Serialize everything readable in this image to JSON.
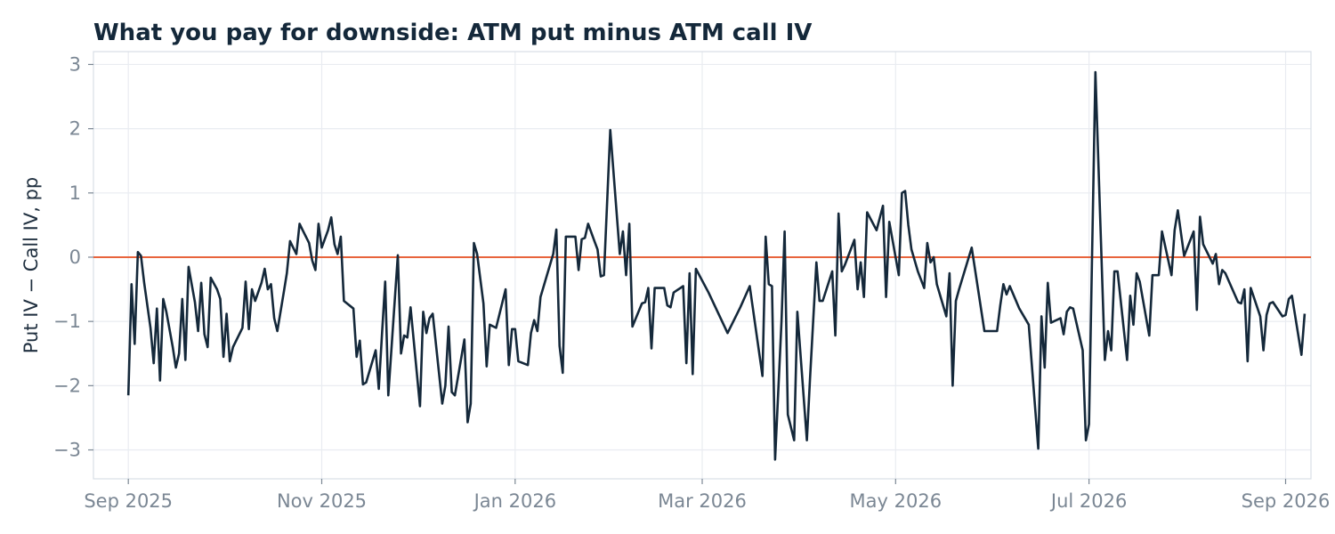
{
  "chart_data": {
    "type": "line",
    "title": "What you pay for downside: ATM put minus ATM call IV",
    "xlabel": "",
    "ylabel": "Put IV − Call IV, pp",
    "xlim": [
      "2025-08-21",
      "2026-09-09"
    ],
    "ylim": [
      -3.45,
      3.2
    ],
    "yticks": [
      {
        "value": 3,
        "label": "3"
      },
      {
        "value": 2,
        "label": "2"
      },
      {
        "value": 1,
        "label": "1"
      },
      {
        "value": 0,
        "label": "0"
      },
      {
        "value": -1,
        "label": "−1"
      },
      {
        "value": -2,
        "label": "−2"
      },
      {
        "value": -3,
        "label": "−3"
      }
    ],
    "xticks": [
      {
        "date": "2025-09-01",
        "label": "Sep 2025"
      },
      {
        "date": "2025-11-01",
        "label": "Nov 2025"
      },
      {
        "date": "2026-01-01",
        "label": "Jan 2026"
      },
      {
        "date": "2026-03-01",
        "label": "Mar 2026"
      },
      {
        "date": "2026-05-01",
        "label": "May 2026"
      },
      {
        "date": "2026-07-01",
        "label": "Jul 2026"
      },
      {
        "date": "2026-09-01",
        "label": "Sep 2026"
      }
    ],
    "grid": true,
    "reference_line": {
      "y": 0,
      "color": "#e8643c"
    },
    "series": [
      {
        "color": "#14283a",
        "points": [
          [
            "2025-09-01",
            -2.15
          ],
          [
            "2025-09-02",
            -0.42
          ],
          [
            "2025-09-03",
            -1.35
          ],
          [
            "2025-09-04",
            0.08
          ],
          [
            "2025-09-05",
            0.02
          ],
          [
            "2025-09-06",
            -0.4
          ],
          [
            "2025-09-08",
            -1.1
          ],
          [
            "2025-09-09",
            -1.65
          ],
          [
            "2025-09-10",
            -0.8
          ],
          [
            "2025-09-11",
            -1.92
          ],
          [
            "2025-09-12",
            -0.65
          ],
          [
            "2025-09-13",
            -0.85
          ],
          [
            "2025-09-15",
            -1.4
          ],
          [
            "2025-09-16",
            -1.72
          ],
          [
            "2025-09-17",
            -1.5
          ],
          [
            "2025-09-18",
            -0.65
          ],
          [
            "2025-09-19",
            -1.6
          ],
          [
            "2025-09-20",
            -0.15
          ],
          [
            "2025-09-22",
            -0.7
          ],
          [
            "2025-09-23",
            -1.15
          ],
          [
            "2025-09-24",
            -0.4
          ],
          [
            "2025-09-25",
            -1.2
          ],
          [
            "2025-09-26",
            -1.4
          ],
          [
            "2025-09-27",
            -0.32
          ],
          [
            "2025-09-29",
            -0.5
          ],
          [
            "2025-09-30",
            -0.65
          ],
          [
            "2025-10-01",
            -1.55
          ],
          [
            "2025-10-02",
            -0.88
          ],
          [
            "2025-10-03",
            -1.62
          ],
          [
            "2025-10-04",
            -1.4
          ],
          [
            "2025-10-07",
            -1.1
          ],
          [
            "2025-10-08",
            -0.38
          ],
          [
            "2025-10-09",
            -1.12
          ],
          [
            "2025-10-10",
            -0.5
          ],
          [
            "2025-10-11",
            -0.68
          ],
          [
            "2025-10-13",
            -0.4
          ],
          [
            "2025-10-14",
            -0.18
          ],
          [
            "2025-10-15",
            -0.5
          ],
          [
            "2025-10-16",
            -0.42
          ],
          [
            "2025-10-17",
            -0.95
          ],
          [
            "2025-10-18",
            -1.15
          ],
          [
            "2025-10-20",
            -0.55
          ],
          [
            "2025-10-21",
            -0.25
          ],
          [
            "2025-10-22",
            0.25
          ],
          [
            "2025-10-23",
            0.15
          ],
          [
            "2025-10-24",
            0.05
          ],
          [
            "2025-10-25",
            0.52
          ],
          [
            "2025-10-26",
            0.42
          ],
          [
            "2025-10-28",
            0.22
          ],
          [
            "2025-10-29",
            -0.05
          ],
          [
            "2025-10-30",
            -0.2
          ],
          [
            "2025-10-31",
            0.52
          ],
          [
            "2025-11-01",
            0.15
          ],
          [
            "2025-11-03",
            0.42
          ],
          [
            "2025-11-04",
            0.62
          ],
          [
            "2025-11-05",
            0.2
          ],
          [
            "2025-11-06",
            0.05
          ],
          [
            "2025-11-07",
            0.32
          ],
          [
            "2025-11-08",
            -0.68
          ],
          [
            "2025-11-11",
            -0.8
          ],
          [
            "2025-11-12",
            -1.55
          ],
          [
            "2025-11-13",
            -1.3
          ],
          [
            "2025-11-14",
            -1.98
          ],
          [
            "2025-11-15",
            -1.95
          ],
          [
            "2025-11-18",
            -1.45
          ],
          [
            "2025-11-19",
            -2.05
          ],
          [
            "2025-11-20",
            -1.2
          ],
          [
            "2025-11-21",
            -0.38
          ],
          [
            "2025-11-22",
            -2.15
          ],
          [
            "2025-11-24",
            -0.7
          ],
          [
            "2025-11-25",
            0.03
          ],
          [
            "2025-11-26",
            -1.5
          ],
          [
            "2025-11-27",
            -1.22
          ],
          [
            "2025-11-28",
            -1.25
          ],
          [
            "2025-11-29",
            -0.78
          ],
          [
            "2025-12-02",
            -2.32
          ],
          [
            "2025-12-03",
            -0.85
          ],
          [
            "2025-12-04",
            -1.18
          ],
          [
            "2025-12-05",
            -0.95
          ],
          [
            "2025-12-06",
            -0.88
          ],
          [
            "2025-12-09",
            -2.28
          ],
          [
            "2025-12-10",
            -2.0
          ],
          [
            "2025-12-11",
            -1.08
          ],
          [
            "2025-12-12",
            -2.1
          ],
          [
            "2025-12-13",
            -2.15
          ],
          [
            "2025-12-16",
            -1.28
          ],
          [
            "2025-12-17",
            -2.57
          ],
          [
            "2025-12-18",
            -2.28
          ],
          [
            "2025-12-19",
            0.22
          ],
          [
            "2025-12-20",
            0.05
          ],
          [
            "2025-12-22",
            -0.72
          ],
          [
            "2025-12-23",
            -1.7
          ],
          [
            "2025-12-24",
            -1.05
          ],
          [
            "2025-12-26",
            -1.1
          ],
          [
            "2025-12-29",
            -0.5
          ],
          [
            "2025-12-30",
            -1.68
          ],
          [
            "2025-12-31",
            -1.12
          ],
          [
            "2026-01-01",
            -1.12
          ],
          [
            "2026-01-02",
            -1.62
          ],
          [
            "2026-01-05",
            -1.68
          ],
          [
            "2026-01-06",
            -1.18
          ],
          [
            "2026-01-07",
            -0.98
          ],
          [
            "2026-01-08",
            -1.15
          ],
          [
            "2026-01-09",
            -0.62
          ],
          [
            "2026-01-13",
            0.05
          ],
          [
            "2026-01-14",
            0.43
          ],
          [
            "2026-01-15",
            -1.38
          ],
          [
            "2026-01-16",
            -1.8
          ],
          [
            "2026-01-17",
            0.32
          ],
          [
            "2026-01-20",
            0.32
          ],
          [
            "2026-01-21",
            -0.2
          ],
          [
            "2026-01-22",
            0.28
          ],
          [
            "2026-01-23",
            0.3
          ],
          [
            "2026-01-24",
            0.52
          ],
          [
            "2026-01-26",
            0.25
          ],
          [
            "2026-01-27",
            0.12
          ],
          [
            "2026-01-28",
            -0.3
          ],
          [
            "2026-01-29",
            -0.28
          ],
          [
            "2026-01-31",
            1.98
          ],
          [
            "2026-02-03",
            0.05
          ],
          [
            "2026-02-04",
            0.4
          ],
          [
            "2026-02-05",
            -0.28
          ],
          [
            "2026-02-06",
            0.52
          ],
          [
            "2026-02-07",
            -1.08
          ],
          [
            "2026-02-10",
            -0.72
          ],
          [
            "2026-02-11",
            -0.7
          ],
          [
            "2026-02-12",
            -0.48
          ],
          [
            "2026-02-13",
            -1.42
          ],
          [
            "2026-02-14",
            -0.48
          ],
          [
            "2026-02-17",
            -0.48
          ],
          [
            "2026-02-18",
            -0.75
          ],
          [
            "2026-02-19",
            -0.78
          ],
          [
            "2026-02-20",
            -0.55
          ],
          [
            "2026-02-23",
            -0.45
          ],
          [
            "2026-02-24",
            -1.65
          ],
          [
            "2026-02-25",
            -0.25
          ],
          [
            "2026-02-26",
            -1.82
          ],
          [
            "2026-02-27",
            -0.18
          ],
          [
            "2026-03-03",
            -0.55
          ],
          [
            "2026-03-09",
            -1.18
          ],
          [
            "2026-03-13",
            -0.78
          ],
          [
            "2026-03-16",
            -0.45
          ],
          [
            "2026-03-20",
            -1.85
          ],
          [
            "2026-03-21",
            0.32
          ],
          [
            "2026-03-22",
            -0.42
          ],
          [
            "2026-03-23",
            -0.45
          ],
          [
            "2026-03-24",
            -3.15
          ],
          [
            "2026-03-26",
            -1.0
          ],
          [
            "2026-03-27",
            0.4
          ],
          [
            "2026-03-28",
            -2.45
          ],
          [
            "2026-03-30",
            -2.85
          ],
          [
            "2026-03-31",
            -0.85
          ],
          [
            "2026-04-03",
            -2.85
          ],
          [
            "2026-04-04",
            -1.9
          ],
          [
            "2026-04-06",
            -0.08
          ],
          [
            "2026-04-07",
            -0.68
          ],
          [
            "2026-04-08",
            -0.68
          ],
          [
            "2026-04-11",
            -0.22
          ],
          [
            "2026-04-12",
            -1.22
          ],
          [
            "2026-04-13",
            0.68
          ],
          [
            "2026-04-14",
            -0.22
          ],
          [
            "2026-04-15",
            -0.12
          ],
          [
            "2026-04-18",
            0.27
          ],
          [
            "2026-04-19",
            -0.5
          ],
          [
            "2026-04-20",
            -0.08
          ],
          [
            "2026-04-21",
            -0.62
          ],
          [
            "2026-04-22",
            0.7
          ],
          [
            "2026-04-25",
            0.42
          ],
          [
            "2026-04-27",
            0.8
          ],
          [
            "2026-04-28",
            -0.62
          ],
          [
            "2026-04-29",
            0.55
          ],
          [
            "2026-05-02",
            -0.28
          ],
          [
            "2026-05-03",
            1.0
          ],
          [
            "2026-05-04",
            1.03
          ],
          [
            "2026-05-05",
            0.5
          ],
          [
            "2026-05-06",
            0.12
          ],
          [
            "2026-05-08",
            -0.22
          ],
          [
            "2026-05-10",
            -0.48
          ],
          [
            "2026-05-11",
            0.22
          ],
          [
            "2026-05-12",
            -0.08
          ],
          [
            "2026-05-13",
            0.0
          ],
          [
            "2026-05-14",
            -0.42
          ],
          [
            "2026-05-17",
            -0.92
          ],
          [
            "2026-05-18",
            -0.25
          ],
          [
            "2026-05-19",
            -2.0
          ],
          [
            "2026-05-20",
            -0.68
          ],
          [
            "2026-05-21",
            -0.5
          ],
          [
            "2026-05-25",
            0.15
          ],
          [
            "2026-05-29",
            -1.15
          ],
          [
            "2026-06-02",
            -1.15
          ],
          [
            "2026-06-03",
            -0.75
          ],
          [
            "2026-06-04",
            -0.42
          ],
          [
            "2026-06-05",
            -0.58
          ],
          [
            "2026-06-06",
            -0.45
          ],
          [
            "2026-06-09",
            -0.8
          ],
          [
            "2026-06-12",
            -1.05
          ],
          [
            "2026-06-15",
            -2.98
          ],
          [
            "2026-06-16",
            -0.92
          ],
          [
            "2026-06-17",
            -1.72
          ],
          [
            "2026-06-18",
            -0.4
          ],
          [
            "2026-06-19",
            -1.02
          ],
          [
            "2026-06-22",
            -0.95
          ],
          [
            "2026-06-23",
            -1.2
          ],
          [
            "2026-06-24",
            -0.85
          ],
          [
            "2026-06-25",
            -0.78
          ],
          [
            "2026-06-26",
            -0.8
          ],
          [
            "2026-06-29",
            -1.45
          ],
          [
            "2026-06-30",
            -2.85
          ],
          [
            "2026-07-01",
            -2.6
          ],
          [
            "2026-07-03",
            2.88
          ],
          [
            "2026-07-06",
            -1.6
          ],
          [
            "2026-07-07",
            -1.15
          ],
          [
            "2026-07-08",
            -1.45
          ],
          [
            "2026-07-09",
            -0.22
          ],
          [
            "2026-07-10",
            -0.22
          ],
          [
            "2026-07-13",
            -1.6
          ],
          [
            "2026-07-14",
            -0.6
          ],
          [
            "2026-07-15",
            -1.05
          ],
          [
            "2026-07-16",
            -0.25
          ],
          [
            "2026-07-17",
            -0.38
          ],
          [
            "2026-07-20",
            -1.22
          ],
          [
            "2026-07-21",
            -0.28
          ],
          [
            "2026-07-23",
            -0.28
          ],
          [
            "2026-07-24",
            0.4
          ],
          [
            "2026-07-27",
            -0.28
          ],
          [
            "2026-07-28",
            0.42
          ],
          [
            "2026-07-29",
            0.73
          ],
          [
            "2026-07-31",
            0.02
          ],
          [
            "2026-08-03",
            0.4
          ],
          [
            "2026-08-04",
            -0.82
          ],
          [
            "2026-08-05",
            0.63
          ],
          [
            "2026-08-06",
            0.2
          ],
          [
            "2026-08-09",
            -0.1
          ],
          [
            "2026-08-10",
            0.05
          ],
          [
            "2026-08-11",
            -0.42
          ],
          [
            "2026-08-12",
            -0.2
          ],
          [
            "2026-08-13",
            -0.25
          ],
          [
            "2026-08-17",
            -0.7
          ],
          [
            "2026-08-18",
            -0.72
          ],
          [
            "2026-08-19",
            -0.5
          ],
          [
            "2026-08-20",
            -1.62
          ],
          [
            "2026-08-21",
            -0.48
          ],
          [
            "2026-08-24",
            -0.92
          ],
          [
            "2026-08-25",
            -1.45
          ],
          [
            "2026-08-26",
            -0.9
          ],
          [
            "2026-08-27",
            -0.72
          ],
          [
            "2026-08-28",
            -0.7
          ],
          [
            "2026-08-31",
            -0.92
          ],
          [
            "2026-09-01",
            -0.9
          ],
          [
            "2026-09-02",
            -0.65
          ],
          [
            "2026-09-03",
            -0.6
          ],
          [
            "2026-09-06",
            -1.52
          ],
          [
            "2026-09-07",
            -0.88
          ]
        ]
      }
    ]
  }
}
